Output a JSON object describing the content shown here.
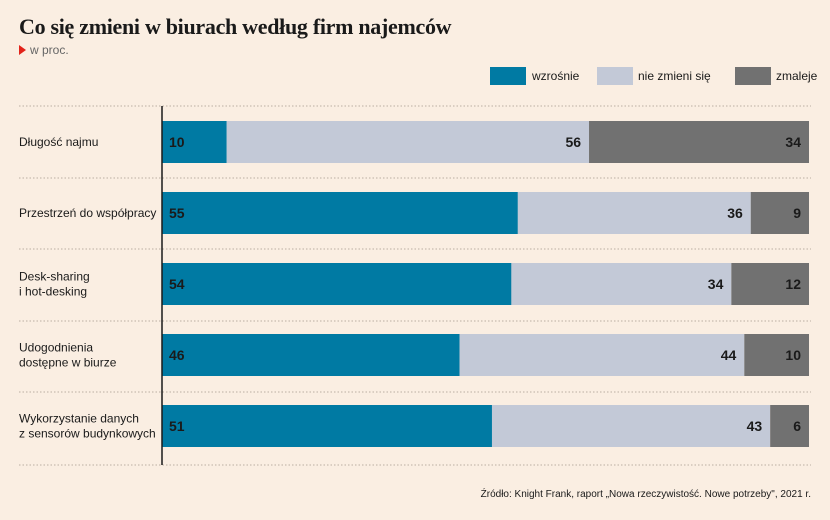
{
  "title": "Co się zmieni w biurach według firm najemców",
  "subtitle": "w proc.",
  "source": "Źródło: Knight Frank, raport „Nowa rzeczywistość. Nowe potrzeby\", 2021 r.",
  "colors": {
    "background": "#faeee2",
    "accent": "#e2231a",
    "wzrosnie": "#007aa3",
    "nie_zmieni": "#c3c9d7",
    "zmaleje": "#717171"
  },
  "chart_data": {
    "type": "bar",
    "orientation": "horizontal",
    "stacked": true,
    "title": "Co się zmieni w biurach według firm najemców",
    "subtitle": "w proc.",
    "xlim": [
      0,
      100
    ],
    "legend_position": "top-right",
    "grid": false,
    "categories": [
      [
        "Długość najmu"
      ],
      [
        "Przestrzeń do współpracy"
      ],
      [
        "Desk-sharing",
        "i hot-desking"
      ],
      [
        "Udogodnienia",
        "dostępne w biurze"
      ],
      [
        "Wykorzystanie danych",
        "z sensorów budynkowych"
      ]
    ],
    "series": [
      {
        "name": "wzrośnie",
        "color": "#007aa3",
        "values": [
          10,
          55,
          54,
          46,
          51
        ]
      },
      {
        "name": "nie zmieni się",
        "color": "#c3c9d7",
        "values": [
          56,
          36,
          34,
          44,
          43
        ]
      },
      {
        "name": "zmaleje",
        "color": "#717171",
        "values": [
          34,
          9,
          12,
          10,
          6
        ]
      }
    ]
  }
}
